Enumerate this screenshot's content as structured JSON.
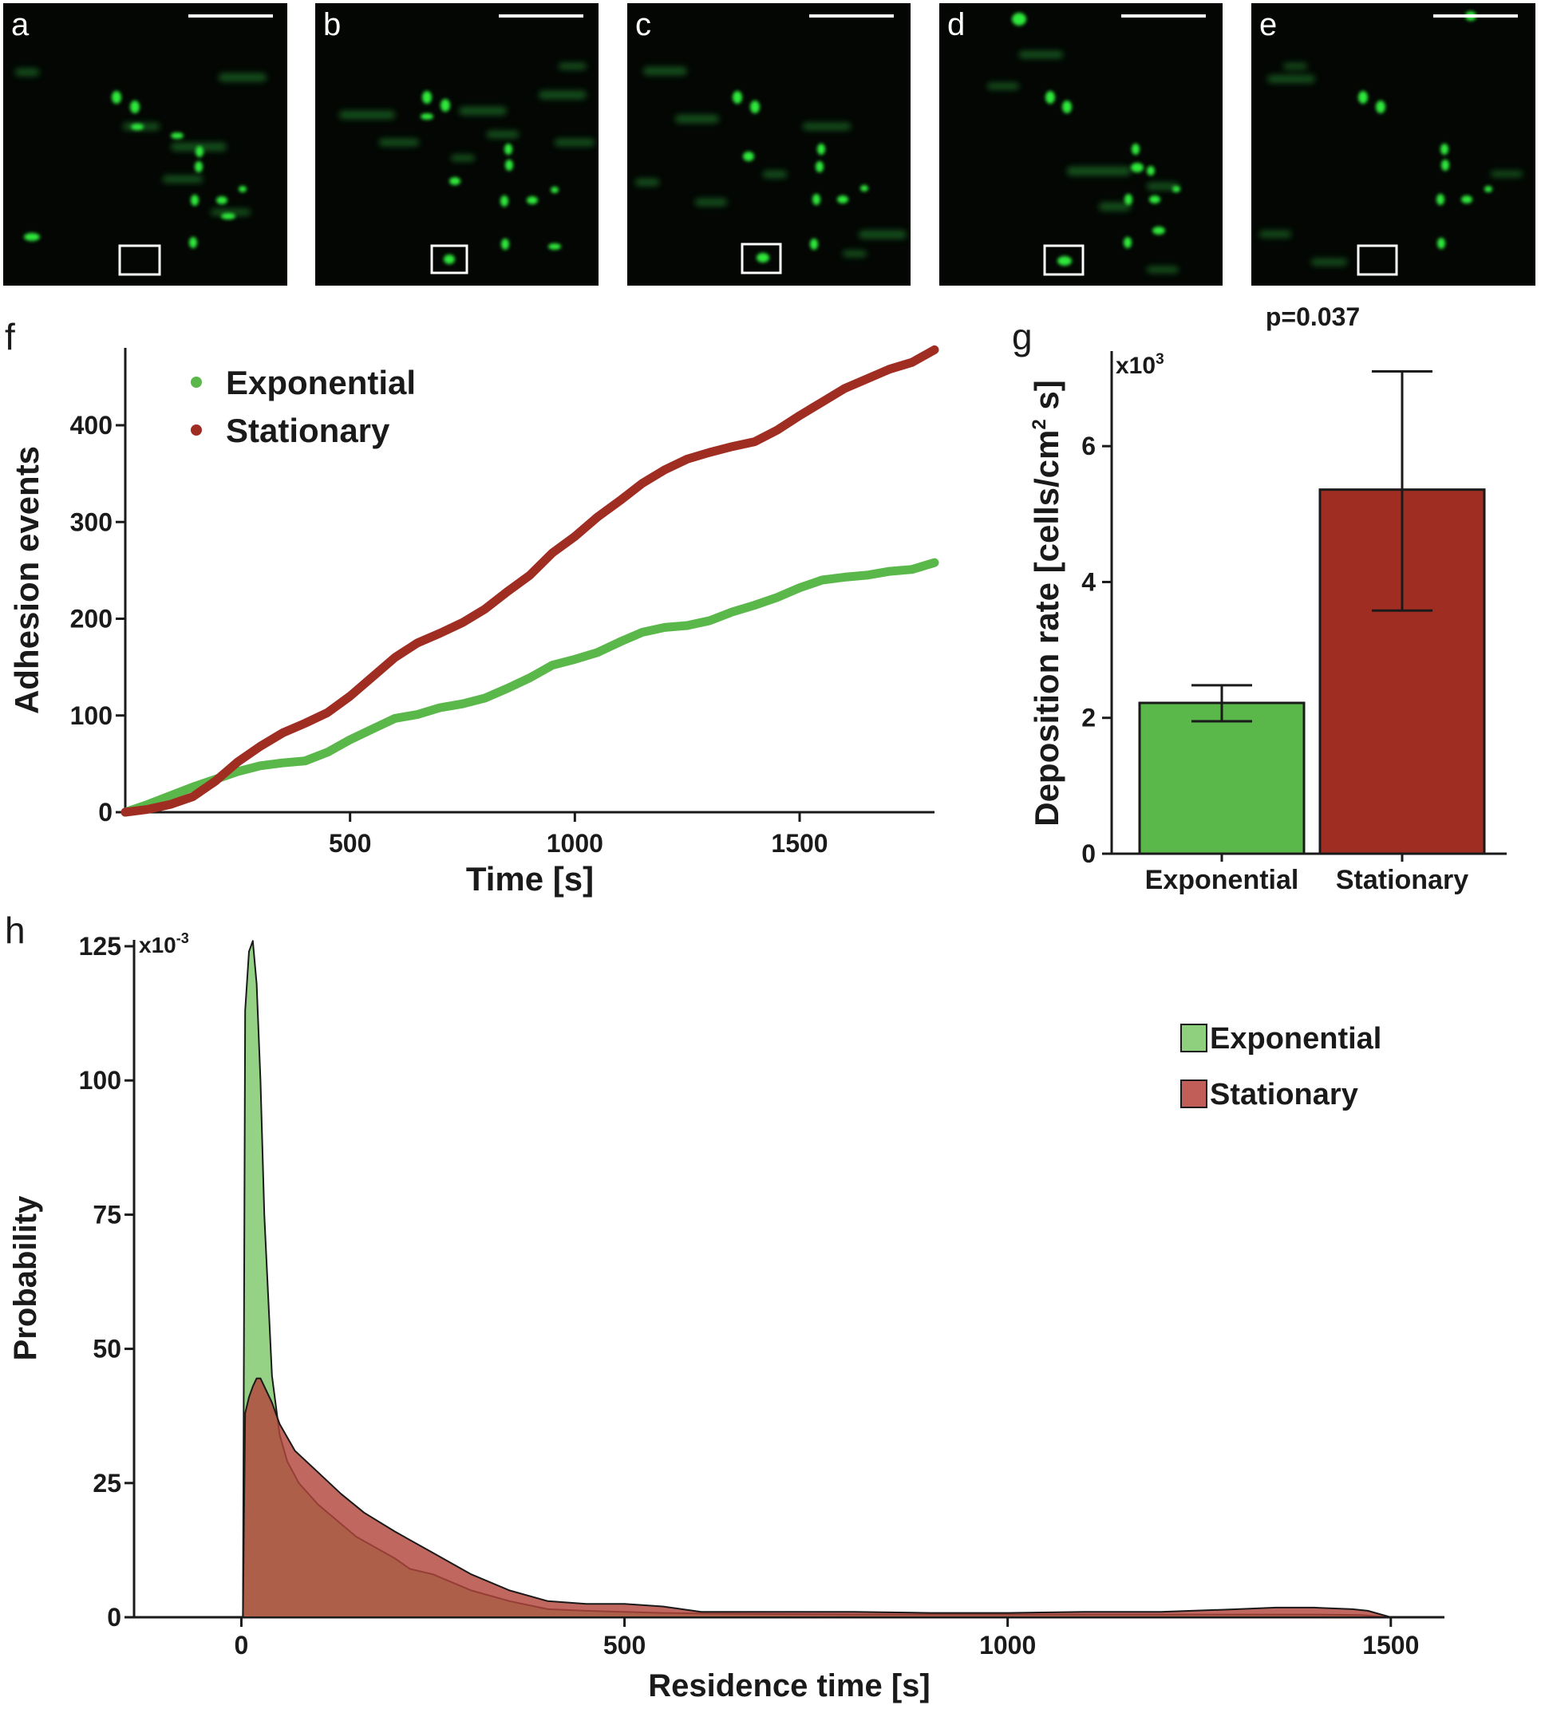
{
  "panels": {
    "labels": [
      "a",
      "b",
      "c",
      "d",
      "e"
    ]
  },
  "colors": {
    "exponential": "#5ab84a",
    "stationary": "#a02d22",
    "micro_bg": "#030603",
    "cell": "#2ee83a"
  },
  "chart_data": [
    {
      "id": "f",
      "panel_label": "f",
      "type": "line",
      "xlabel": "Time [s]",
      "ylabel": "Adhesion events",
      "xlim": [
        0,
        1800
      ],
      "ylim": [
        0,
        480
      ],
      "xticks": [
        500,
        1000,
        1500
      ],
      "yticks": [
        0,
        100,
        200,
        300,
        400
      ],
      "legend": "top-left",
      "series": [
        {
          "name": "Exponential",
          "x": [
            0,
            50,
            100,
            150,
            200,
            250,
            300,
            350,
            400,
            450,
            500,
            550,
            600,
            650,
            700,
            750,
            800,
            850,
            900,
            950,
            1000,
            1050,
            1100,
            1150,
            1200,
            1250,
            1300,
            1350,
            1400,
            1450,
            1500,
            1550,
            1600,
            1650,
            1700,
            1750,
            1800
          ],
          "y": [
            0,
            8,
            17,
            26,
            34,
            42,
            48,
            51,
            53,
            62,
            75,
            86,
            97,
            101,
            108,
            112,
            118,
            128,
            139,
            152,
            158,
            165,
            176,
            186,
            191,
            193,
            198,
            207,
            214,
            222,
            232,
            240,
            243,
            245,
            249,
            251,
            258
          ]
        },
        {
          "name": "Stationary",
          "x": [
            0,
            50,
            100,
            150,
            200,
            250,
            300,
            350,
            400,
            450,
            500,
            550,
            600,
            650,
            700,
            750,
            800,
            850,
            900,
            950,
            1000,
            1050,
            1100,
            1150,
            1200,
            1250,
            1300,
            1350,
            1400,
            1450,
            1500,
            1550,
            1600,
            1650,
            1700,
            1750,
            1800
          ],
          "y": [
            0,
            3,
            8,
            16,
            32,
            52,
            68,
            82,
            92,
            103,
            120,
            140,
            160,
            175,
            185,
            196,
            210,
            228,
            245,
            268,
            285,
            305,
            322,
            340,
            354,
            365,
            372,
            378,
            383,
            395,
            410,
            424,
            438,
            448,
            458,
            465,
            478
          ]
        }
      ]
    },
    {
      "id": "g",
      "panel_label": "g",
      "type": "bar",
      "categories": [
        "Exponential",
        "Stationary"
      ],
      "values": [
        2.22,
        5.36
      ],
      "error_low": [
        1.95,
        3.58
      ],
      "error_high": [
        2.48,
        7.1
      ],
      "ylabel": "Deposition rate [cells/cm",
      "ylabel_sup": "2",
      "ylabel_end": " s]",
      "multiplier": "x10",
      "multiplier_exp": "3",
      "ylim": [
        0,
        7.4
      ],
      "yticks": [
        0,
        2,
        4,
        6
      ],
      "annotation": "p=0.037"
    },
    {
      "id": "h",
      "panel_label": "h",
      "type": "area",
      "xlabel": "Residence time [s]",
      "ylabel": "Probability",
      "multiplier": "x10",
      "multiplier_exp": "-3",
      "xlim": [
        -140,
        1570
      ],
      "ylim": [
        0,
        125
      ],
      "xticks": [
        0,
        500,
        1000,
        1500
      ],
      "yticks": [
        0,
        25,
        50,
        75,
        100,
        125
      ],
      "legend": "top-right",
      "series": [
        {
          "name": "Exponential",
          "x": [
            2,
            5,
            10,
            15,
            20,
            25,
            30,
            40,
            50,
            60,
            75,
            100,
            150,
            200,
            220,
            250,
            300,
            350,
            400,
            450,
            500,
            550,
            600,
            700,
            800,
            900,
            1000,
            1100,
            1200,
            1300,
            1400,
            1460,
            1500
          ],
          "y": [
            0,
            113,
            124,
            126,
            118,
            100,
            75,
            45,
            34,
            29,
            25,
            21,
            15,
            11,
            9,
            8,
            5,
            3,
            1.5,
            1.2,
            1,
            0.8,
            0.7,
            0.6,
            0.5,
            0.5,
            0.5,
            0.5,
            0.5,
            0.5,
            0.5,
            0.4,
            0
          ]
        },
        {
          "name": "Stationary",
          "x": [
            2,
            5,
            10,
            15,
            20,
            25,
            30,
            40,
            50,
            70,
            100,
            130,
            160,
            200,
            250,
            300,
            350,
            400,
            450,
            500,
            550,
            600,
            700,
            800,
            900,
            1000,
            1100,
            1200,
            1300,
            1350,
            1400,
            1450,
            1470,
            1500
          ],
          "y": [
            0,
            38,
            41,
            43,
            44.5,
            44.5,
            43,
            40,
            36,
            31,
            27,
            23,
            19.5,
            16,
            12,
            8,
            5,
            3,
            2.5,
            2.5,
            2,
            1,
            1,
            1,
            0.8,
            0.8,
            1,
            1,
            1.5,
            1.8,
            1.8,
            1.5,
            1.2,
            0
          ]
        }
      ]
    }
  ]
}
